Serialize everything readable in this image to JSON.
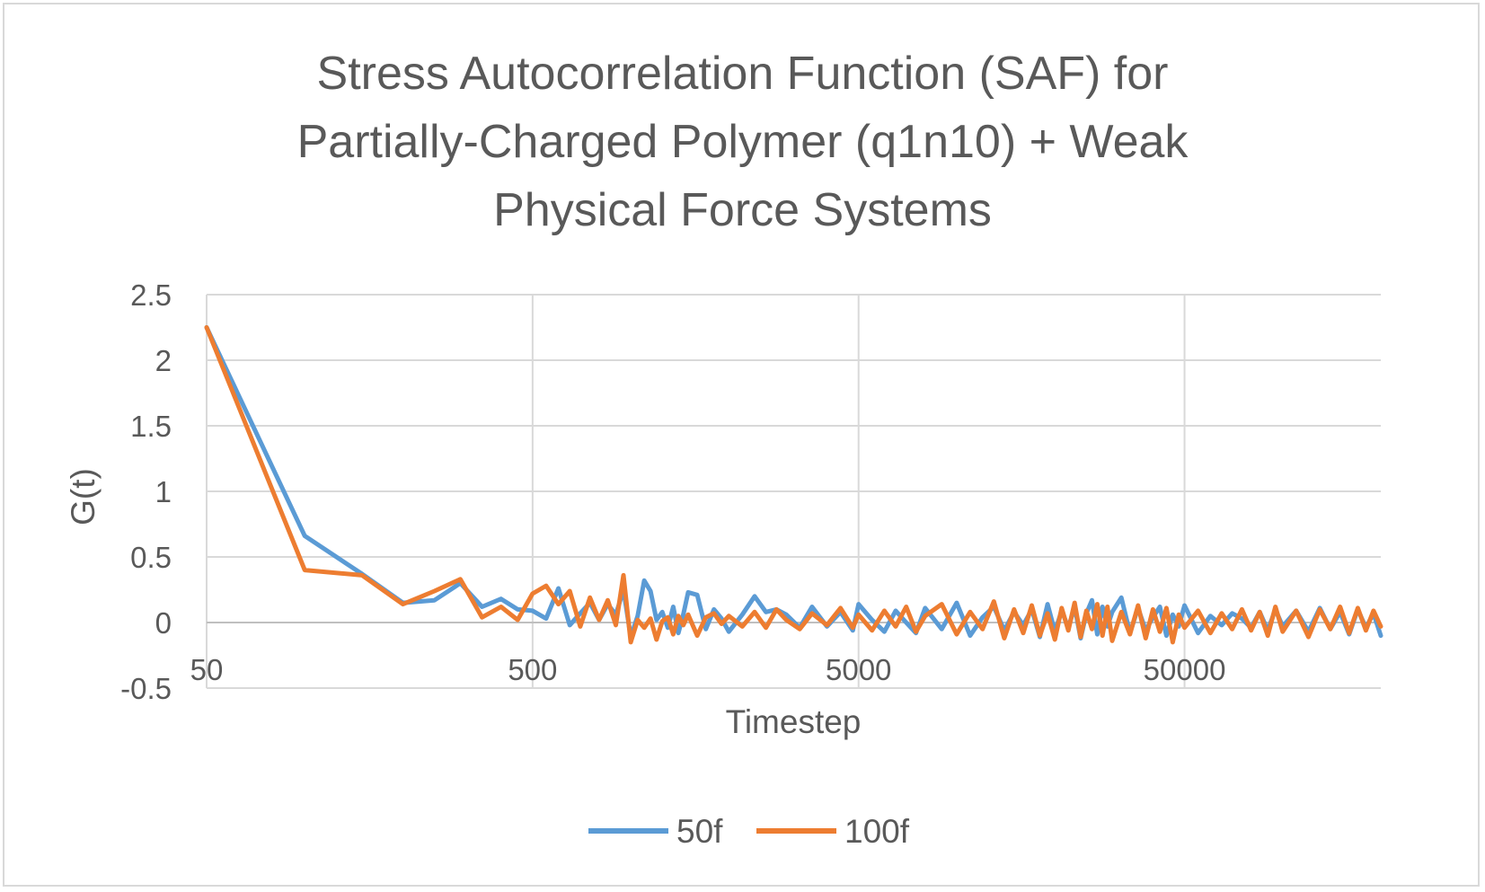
{
  "chart_data": {
    "type": "line",
    "title_lines": [
      "Stress Autocorrelation Function (SAF) for",
      "Partially-Charged Polymer (q1n10) + Weak",
      "Physical Force Systems"
    ],
    "xlabel": "Timestep",
    "ylabel": "G(t)",
    "x_scale": "log",
    "xlim": [
      50,
      200000
    ],
    "ylim": [
      -0.5,
      2.5
    ],
    "x_ticks": [
      50,
      500,
      5000,
      50000
    ],
    "x_tick_labels": [
      "50",
      "500",
      "5000",
      "50000"
    ],
    "y_ticks": [
      -0.5,
      0,
      0.5,
      1,
      1.5,
      2,
      2.5
    ],
    "y_tick_labels": [
      "-0.5",
      "0",
      "0.5",
      "1",
      "1.5",
      "2",
      "2.5"
    ],
    "grid": true,
    "legend_position": "bottom",
    "colors": {
      "50f": "#5b9bd5",
      "100f": "#ed7d31",
      "grid": "#d9d9d9",
      "text": "#595959"
    },
    "series": [
      {
        "name": "50f",
        "color": "#5b9bd5",
        "x": [
          50,
          100,
          150,
          200,
          250,
          300,
          350,
          400,
          450,
          500,
          550,
          600,
          650,
          700,
          750,
          800,
          850,
          900,
          950,
          1000,
          1050,
          1100,
          1150,
          1200,
          1250,
          1300,
          1350,
          1400,
          1450,
          1500,
          1600,
          1700,
          1800,
          1900,
          2000,
          2200,
          2400,
          2600,
          2800,
          3000,
          3300,
          3600,
          4000,
          4400,
          4800,
          5000,
          5500,
          6000,
          6500,
          7000,
          7500,
          8000,
          9000,
          10000,
          11000,
          12000,
          13000,
          14000,
          15000,
          16000,
          17000,
          18000,
          19000,
          20000,
          21000,
          22000,
          23000,
          24000,
          25000,
          26000,
          27000,
          28000,
          29000,
          30000,
          32000,
          34000,
          36000,
          38000,
          40000,
          42000,
          44000,
          46000,
          48000,
          50000,
          55000,
          60000,
          65000,
          70000,
          75000,
          80000,
          85000,
          90000,
          95000,
          100000,
          110000,
          120000,
          130000,
          140000,
          150000,
          160000,
          170000,
          180000,
          190000,
          200000
        ],
        "y": [
          2.25,
          0.66,
          0.37,
          0.15,
          0.17,
          0.3,
          0.12,
          0.18,
          0.1,
          0.09,
          0.03,
          0.26,
          -0.02,
          0.07,
          0.15,
          0.02,
          0.14,
          0.06,
          0.25,
          -0.11,
          0.05,
          0.32,
          0.24,
          0.02,
          0.08,
          -0.04,
          0.12,
          -0.08,
          0.06,
          0.23,
          0.21,
          -0.05,
          0.1,
          0.03,
          -0.07,
          0.06,
          0.2,
          0.08,
          0.1,
          0.06,
          -0.04,
          0.12,
          -0.03,
          0.08,
          -0.06,
          0.14,
          0.02,
          -0.07,
          0.09,
          0.0,
          -0.08,
          0.11,
          -0.05,
          0.15,
          -0.1,
          0.04,
          0.12,
          -0.06,
          0.08,
          -0.02,
          0.1,
          -0.11,
          0.14,
          -0.07,
          0.09,
          -0.04,
          0.12,
          -0.12,
          0.07,
          0.17,
          -0.09,
          0.12,
          -0.03,
          0.08,
          0.19,
          -0.08,
          0.11,
          -0.06,
          0.04,
          0.12,
          -0.1,
          0.06,
          -0.03,
          0.13,
          -0.08,
          0.05,
          -0.02,
          0.07,
          0.03,
          -0.04,
          0.08,
          -0.06,
          0.1,
          -0.03,
          0.09,
          -0.07,
          0.11,
          -0.05,
          0.08,
          -0.09,
          0.1,
          -0.04,
          0.07,
          -0.1
        ]
      },
      {
        "name": "100f",
        "color": "#ed7d31",
        "x": [
          50,
          100,
          150,
          200,
          250,
          300,
          350,
          400,
          450,
          500,
          550,
          600,
          650,
          700,
          750,
          800,
          850,
          900,
          950,
          1000,
          1050,
          1100,
          1150,
          1200,
          1250,
          1300,
          1350,
          1400,
          1450,
          1500,
          1600,
          1700,
          1800,
          1900,
          2000,
          2200,
          2400,
          2600,
          2800,
          3000,
          3300,
          3600,
          4000,
          4400,
          4800,
          5000,
          5500,
          6000,
          6500,
          7000,
          7500,
          8000,
          9000,
          10000,
          11000,
          12000,
          13000,
          14000,
          15000,
          16000,
          17000,
          18000,
          19000,
          20000,
          21000,
          22000,
          23000,
          24000,
          25000,
          26000,
          27000,
          28000,
          29000,
          30000,
          32000,
          34000,
          36000,
          38000,
          40000,
          42000,
          44000,
          46000,
          48000,
          50000,
          55000,
          60000,
          65000,
          70000,
          75000,
          80000,
          85000,
          90000,
          95000,
          100000,
          110000,
          120000,
          130000,
          140000,
          150000,
          160000,
          170000,
          180000,
          190000,
          200000
        ],
        "y": [
          2.25,
          0.4,
          0.36,
          0.14,
          0.24,
          0.33,
          0.04,
          0.12,
          0.02,
          0.22,
          0.28,
          0.14,
          0.24,
          -0.03,
          0.19,
          0.02,
          0.17,
          -0.02,
          0.36,
          -0.15,
          0.02,
          -0.04,
          0.03,
          -0.13,
          0.01,
          0.04,
          -0.09,
          0.05,
          -0.02,
          0.06,
          -0.1,
          0.04,
          0.07,
          -0.01,
          0.05,
          -0.03,
          0.08,
          -0.04,
          0.1,
          0.02,
          -0.05,
          0.07,
          -0.02,
          0.11,
          -0.04,
          0.06,
          -0.06,
          0.09,
          -0.03,
          0.12,
          -0.07,
          0.05,
          0.14,
          -0.09,
          0.08,
          -0.05,
          0.16,
          -0.12,
          0.1,
          -0.08,
          0.13,
          -0.1,
          0.07,
          -0.13,
          0.11,
          -0.06,
          0.15,
          -0.11,
          0.09,
          -0.05,
          0.14,
          -0.1,
          0.12,
          -0.14,
          0.08,
          -0.09,
          0.13,
          -0.12,
          0.1,
          -0.07,
          0.11,
          -0.15,
          0.06,
          -0.04,
          0.09,
          -0.08,
          0.07,
          -0.05,
          0.1,
          -0.06,
          0.08,
          -0.1,
          0.12,
          -0.07,
          0.09,
          -0.11,
          0.1,
          -0.05,
          0.12,
          -0.08,
          0.11,
          -0.06,
          0.09,
          -0.03
        ]
      }
    ]
  }
}
